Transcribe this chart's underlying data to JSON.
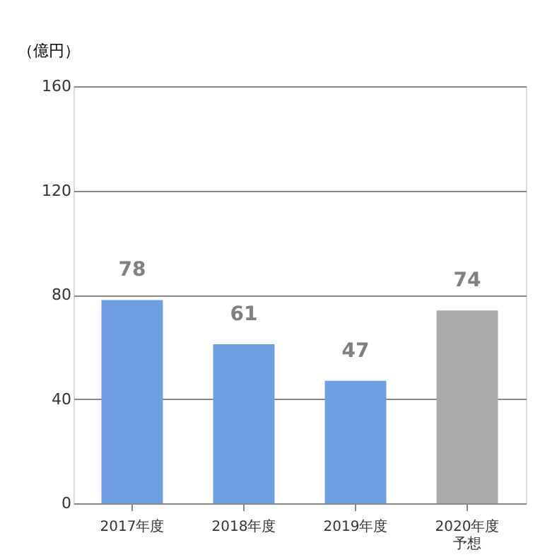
{
  "chart_data": {
    "type": "bar",
    "ylabel": "（億円）",
    "categories": [
      "2017年度",
      "2018年度",
      "2019年度",
      "2020年度予想"
    ],
    "values": [
      78,
      61,
      47,
      74
    ],
    "colors": [
      "#6d9fe0",
      "#6d9fe0",
      "#6d9fe0",
      "#aaaaaa"
    ],
    "ylim": [
      0,
      160
    ],
    "yticks": [
      0,
      40,
      80,
      120,
      160
    ],
    "grid": "y",
    "data_labels": true
  }
}
